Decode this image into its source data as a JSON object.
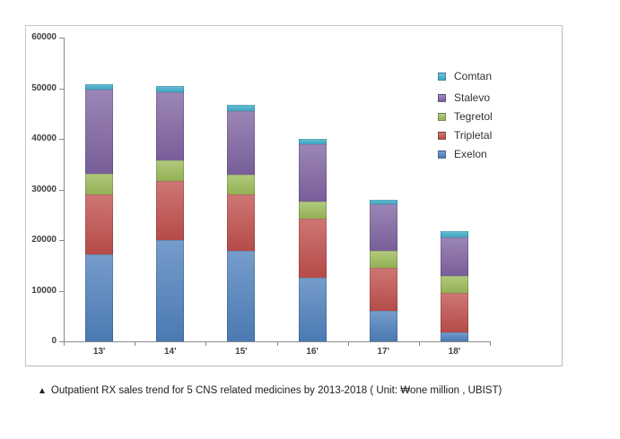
{
  "caption": {
    "marker": "▲",
    "text": "Outpatient RX sales trend for 5 CNS related medicines by 2013-2018 ( Unit: ₩one million , UBIST)"
  },
  "chart_data": {
    "type": "bar",
    "stacked": true,
    "title": "Outpatient RX sales trend for 5 CNS related medicines by 2013-2018",
    "unit": "₩one million",
    "source": "UBIST",
    "grid": "off",
    "categories": [
      "13'",
      "14'",
      "15'",
      "16'",
      "17'",
      "18'"
    ],
    "series": [
      {
        "name": "Exelon",
        "color": "#4F81BD",
        "values": [
          17200,
          20000,
          17900,
          12500,
          6000,
          1700
        ]
      },
      {
        "name": "Tripletal",
        "color": "#C0504D",
        "values": [
          11800,
          11700,
          11200,
          11800,
          8500,
          7800
        ]
      },
      {
        "name": "Tegretol",
        "color": "#9BBB59",
        "values": [
          4100,
          4100,
          3900,
          3300,
          3300,
          3400
        ]
      },
      {
        "name": "Stalevo",
        "color": "#8064A2",
        "values": [
          16600,
          13400,
          12500,
          11400,
          9200,
          7600
        ]
      },
      {
        "name": "Comtan",
        "color": "#3FAECB",
        "values": [
          1100,
          1200,
          1200,
          1000,
          1000,
          1200
        ]
      }
    ],
    "legend": {
      "position": "right",
      "order": [
        "Comtan",
        "Stalevo",
        "Tegretol",
        "Tripletal",
        "Exelon"
      ]
    },
    "y_axis": {
      "min": 0,
      "max": 60000,
      "tick_step": 10000,
      "tick_labels": [
        "60000",
        "50000",
        "40000",
        "30000",
        "20000",
        "10000",
        "0"
      ]
    },
    "ylim": [
      0,
      60000
    ]
  }
}
